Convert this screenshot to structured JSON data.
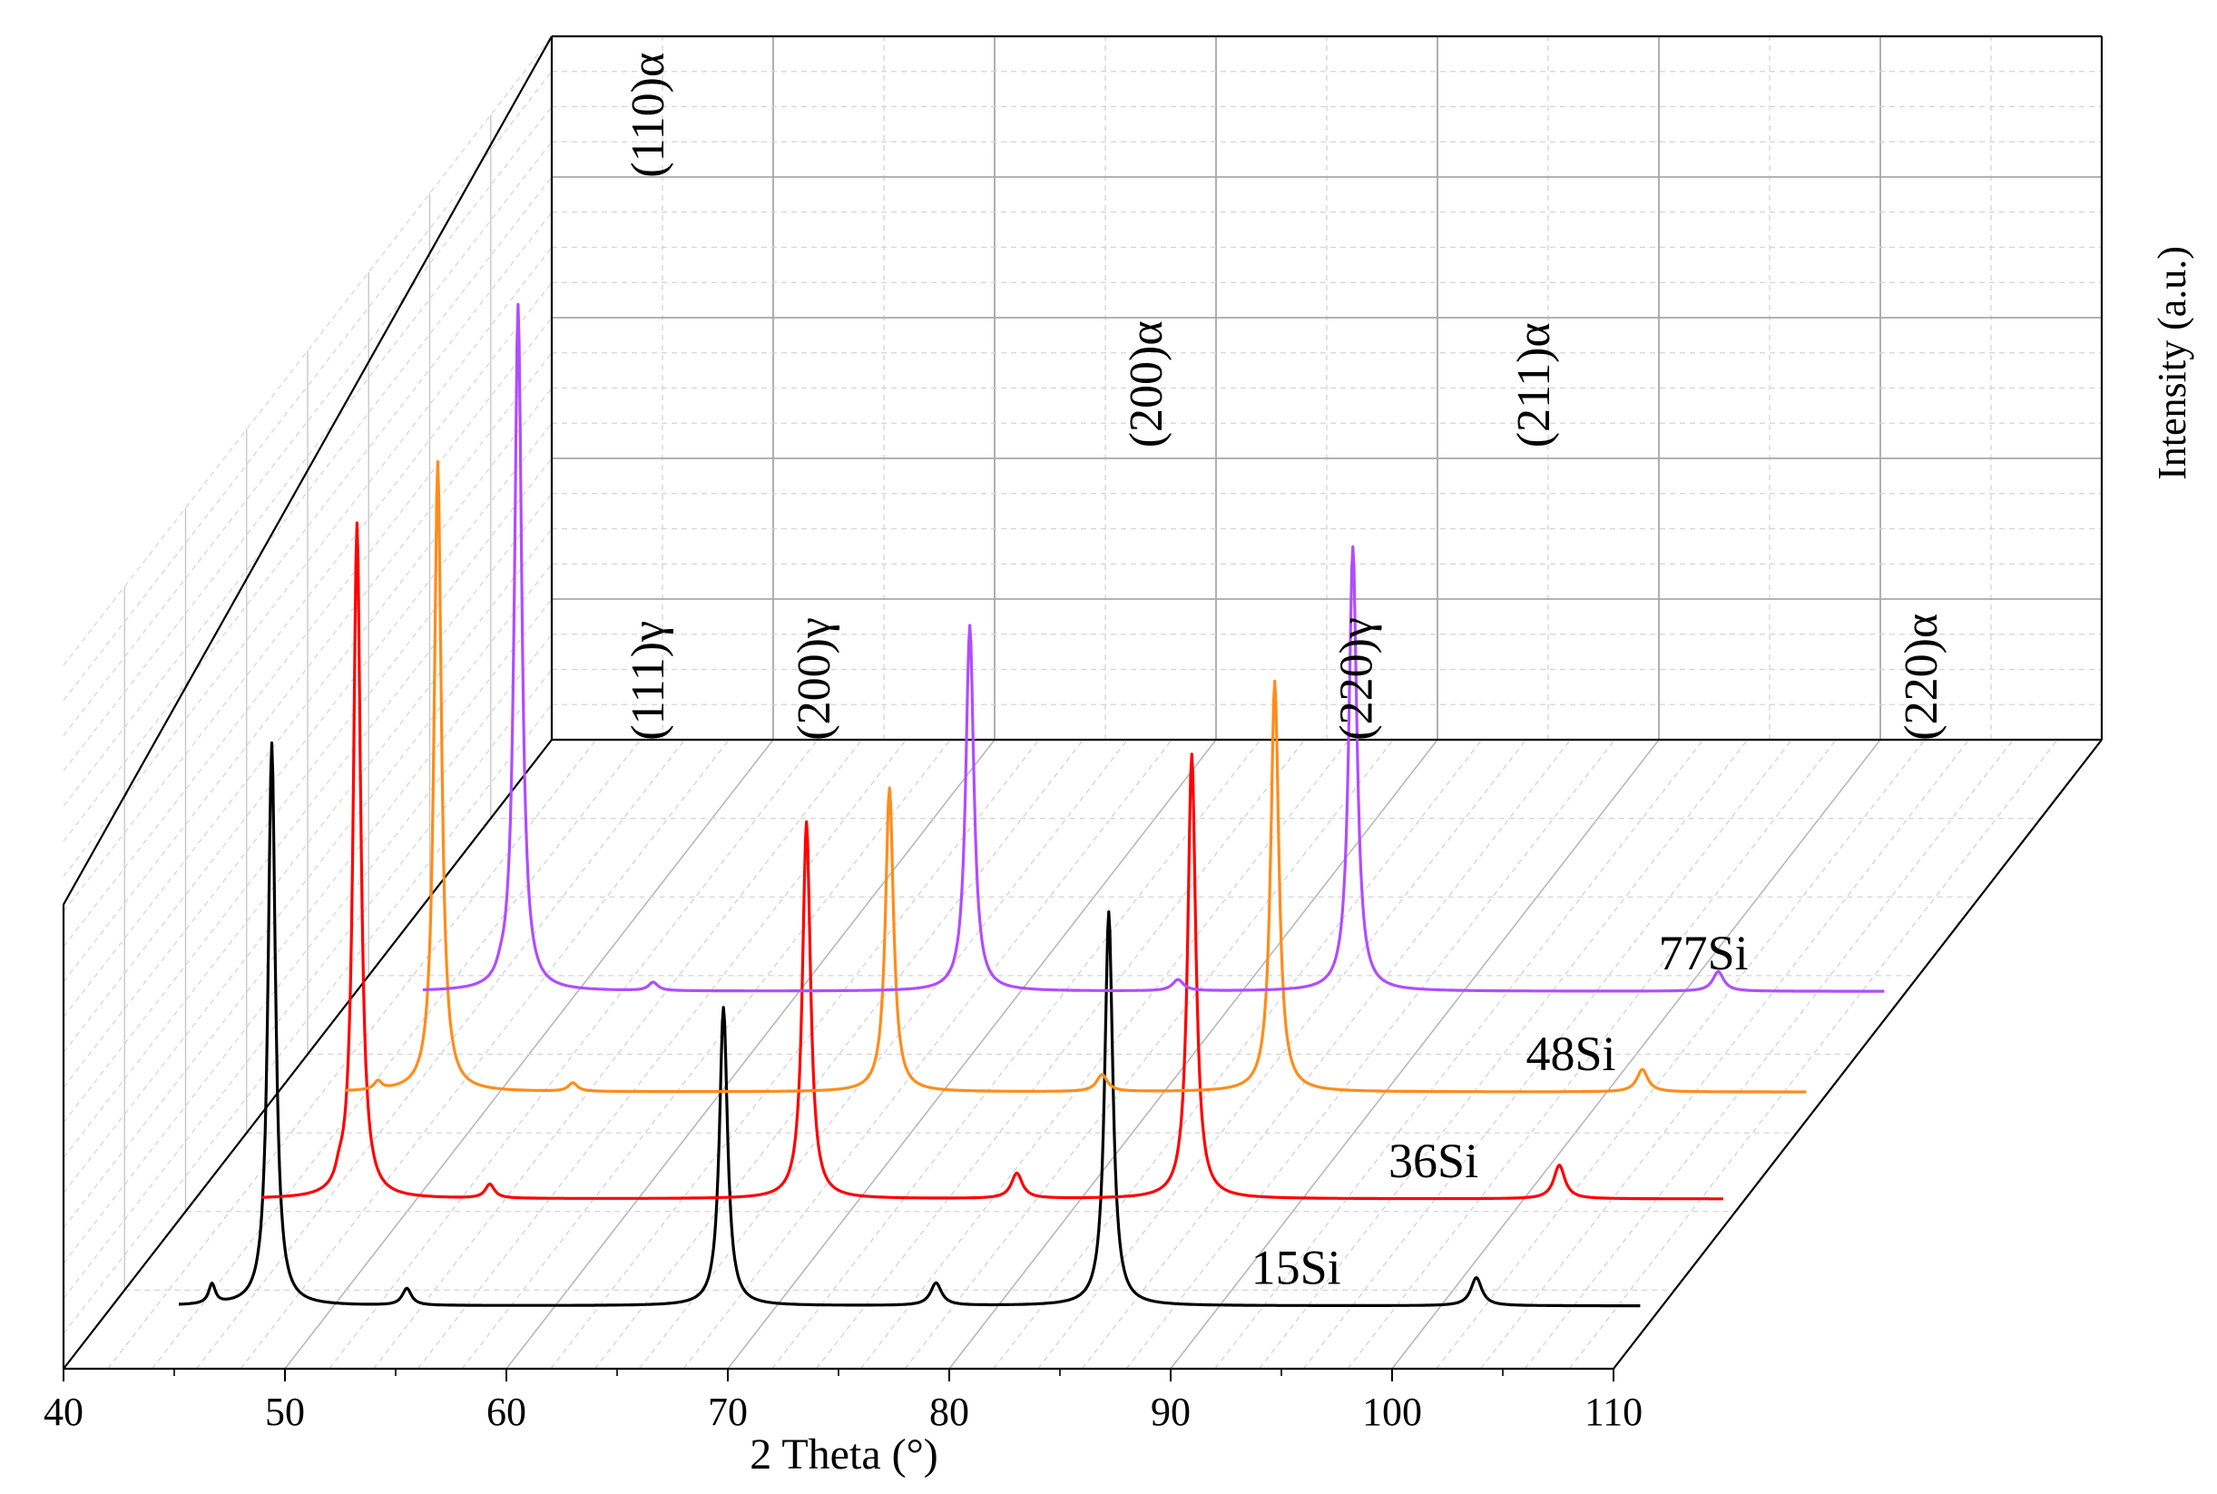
{
  "chart_data": {
    "type": "line",
    "style": "3d-waterfall",
    "title": "",
    "xlabel": "2 Theta (°)",
    "ylabel": "Intensity (a.u.)",
    "xlim": [
      40,
      110
    ],
    "x_ticks": [
      "40",
      "50",
      "60",
      "70",
      "80",
      "90",
      "100",
      "110"
    ],
    "grid": true,
    "series": [
      {
        "name": "15Si",
        "label": "15Si",
        "color": "#000000",
        "noise": 0.0,
        "peaks": [
          {
            "x": 44.5,
            "h": 3.5,
            "w": 0.18
          },
          {
            "x": 47.2,
            "h": 100,
            "w": 0.2
          },
          {
            "x": 53.3,
            "h": 3,
            "w": 0.25
          },
          {
            "x": 67.6,
            "h": 53,
            "w": 0.22
          },
          {
            "x": 77.2,
            "h": 4,
            "w": 0.3
          },
          {
            "x": 85.0,
            "h": 70,
            "w": 0.22
          },
          {
            "x": 101.6,
            "h": 5,
            "w": 0.3
          }
        ]
      },
      {
        "name": "36Si",
        "label": "36Si",
        "color": "#ff0000",
        "noise": 0.0,
        "peaks": [
          {
            "x": 46.5,
            "h": 2,
            "w": 0.2
          },
          {
            "x": 47.3,
            "h": 120,
            "w": 0.2
          },
          {
            "x": 53.3,
            "h": 2.5,
            "w": 0.25
          },
          {
            "x": 67.6,
            "h": 67,
            "w": 0.22
          },
          {
            "x": 77.1,
            "h": 4.5,
            "w": 0.3
          },
          {
            "x": 85.0,
            "h": 79,
            "w": 0.22
          },
          {
            "x": 101.6,
            "h": 6,
            "w": 0.3
          }
        ]
      },
      {
        "name": "48Si",
        "label": "48Si",
        "color": "#ff8c1a",
        "noise": 0.0,
        "peaks": [
          {
            "x": 44.5,
            "h": 1.5,
            "w": 0.2
          },
          {
            "x": 47.2,
            "h": 112,
            "w": 0.2
          },
          {
            "x": 53.3,
            "h": 1.5,
            "w": 0.25
          },
          {
            "x": 67.6,
            "h": 54,
            "w": 0.22
          },
          {
            "x": 77.2,
            "h": 3,
            "w": 0.3
          },
          {
            "x": 85.0,
            "h": 73,
            "w": 0.22
          },
          {
            "x": 101.6,
            "h": 4,
            "w": 0.3
          }
        ]
      },
      {
        "name": "77Si",
        "label": "77Si",
        "color": "#b04dff",
        "noise": 0.0,
        "peaks": [
          {
            "x": 46.5,
            "h": 1,
            "w": 0.2
          },
          {
            "x": 47.3,
            "h": 122,
            "w": 0.2
          },
          {
            "x": 53.4,
            "h": 1.5,
            "w": 0.25
          },
          {
            "x": 67.7,
            "h": 65,
            "w": 0.22
          },
          {
            "x": 77.1,
            "h": 2,
            "w": 0.3
          },
          {
            "x": 85.0,
            "h": 79,
            "w": 0.22
          },
          {
            "x": 101.5,
            "h": 3.5,
            "w": 0.3
          }
        ]
      }
    ],
    "annotations": [
      {
        "text": "(110)α",
        "x": 49.0,
        "y": 120
      },
      {
        "text": "(111)γ",
        "x": 49.0,
        "y": 20
      },
      {
        "text": "(200)γ",
        "x": 56.5,
        "y": 20
      },
      {
        "text": "(200)α",
        "x": 71.5,
        "y": 72
      },
      {
        "text": "(220)γ",
        "x": 81.0,
        "y": 20
      },
      {
        "text": "(211)α",
        "x": 89.0,
        "y": 72
      },
      {
        "text": "(220)α",
        "x": 106.5,
        "y": 20
      }
    ]
  }
}
